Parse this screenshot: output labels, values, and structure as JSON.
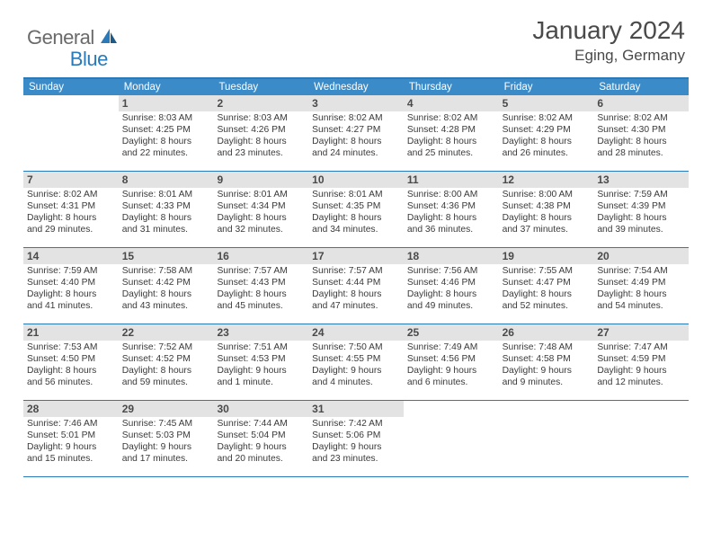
{
  "logo": {
    "part1": "General",
    "part2": "Blue"
  },
  "title": "January 2024",
  "location": "Eging, Germany",
  "colors": {
    "brand_blue": "#2a7ab9",
    "header_blue": "#3b8bc9",
    "grey_text": "#6a6a6a",
    "daynum_bg": "#e3e3e3",
    "body_text": "#3a3a3a"
  },
  "weekdays": [
    "Sunday",
    "Monday",
    "Tuesday",
    "Wednesday",
    "Thursday",
    "Friday",
    "Saturday"
  ],
  "weeks": [
    [
      {
        "n": "",
        "l1": "",
        "l2": "",
        "l3": "",
        "l4": ""
      },
      {
        "n": "1",
        "l1": "Sunrise: 8:03 AM",
        "l2": "Sunset: 4:25 PM",
        "l3": "Daylight: 8 hours",
        "l4": "and 22 minutes."
      },
      {
        "n": "2",
        "l1": "Sunrise: 8:03 AM",
        "l2": "Sunset: 4:26 PM",
        "l3": "Daylight: 8 hours",
        "l4": "and 23 minutes."
      },
      {
        "n": "3",
        "l1": "Sunrise: 8:02 AM",
        "l2": "Sunset: 4:27 PM",
        "l3": "Daylight: 8 hours",
        "l4": "and 24 minutes."
      },
      {
        "n": "4",
        "l1": "Sunrise: 8:02 AM",
        "l2": "Sunset: 4:28 PM",
        "l3": "Daylight: 8 hours",
        "l4": "and 25 minutes."
      },
      {
        "n": "5",
        "l1": "Sunrise: 8:02 AM",
        "l2": "Sunset: 4:29 PM",
        "l3": "Daylight: 8 hours",
        "l4": "and 26 minutes."
      },
      {
        "n": "6",
        "l1": "Sunrise: 8:02 AM",
        "l2": "Sunset: 4:30 PM",
        "l3": "Daylight: 8 hours",
        "l4": "and 28 minutes."
      }
    ],
    [
      {
        "n": "7",
        "l1": "Sunrise: 8:02 AM",
        "l2": "Sunset: 4:31 PM",
        "l3": "Daylight: 8 hours",
        "l4": "and 29 minutes."
      },
      {
        "n": "8",
        "l1": "Sunrise: 8:01 AM",
        "l2": "Sunset: 4:33 PM",
        "l3": "Daylight: 8 hours",
        "l4": "and 31 minutes."
      },
      {
        "n": "9",
        "l1": "Sunrise: 8:01 AM",
        "l2": "Sunset: 4:34 PM",
        "l3": "Daylight: 8 hours",
        "l4": "and 32 minutes."
      },
      {
        "n": "10",
        "l1": "Sunrise: 8:01 AM",
        "l2": "Sunset: 4:35 PM",
        "l3": "Daylight: 8 hours",
        "l4": "and 34 minutes."
      },
      {
        "n": "11",
        "l1": "Sunrise: 8:00 AM",
        "l2": "Sunset: 4:36 PM",
        "l3": "Daylight: 8 hours",
        "l4": "and 36 minutes."
      },
      {
        "n": "12",
        "l1": "Sunrise: 8:00 AM",
        "l2": "Sunset: 4:38 PM",
        "l3": "Daylight: 8 hours",
        "l4": "and 37 minutes."
      },
      {
        "n": "13",
        "l1": "Sunrise: 7:59 AM",
        "l2": "Sunset: 4:39 PM",
        "l3": "Daylight: 8 hours",
        "l4": "and 39 minutes."
      }
    ],
    [
      {
        "n": "14",
        "l1": "Sunrise: 7:59 AM",
        "l2": "Sunset: 4:40 PM",
        "l3": "Daylight: 8 hours",
        "l4": "and 41 minutes."
      },
      {
        "n": "15",
        "l1": "Sunrise: 7:58 AM",
        "l2": "Sunset: 4:42 PM",
        "l3": "Daylight: 8 hours",
        "l4": "and 43 minutes."
      },
      {
        "n": "16",
        "l1": "Sunrise: 7:57 AM",
        "l2": "Sunset: 4:43 PM",
        "l3": "Daylight: 8 hours",
        "l4": "and 45 minutes."
      },
      {
        "n": "17",
        "l1": "Sunrise: 7:57 AM",
        "l2": "Sunset: 4:44 PM",
        "l3": "Daylight: 8 hours",
        "l4": "and 47 minutes."
      },
      {
        "n": "18",
        "l1": "Sunrise: 7:56 AM",
        "l2": "Sunset: 4:46 PM",
        "l3": "Daylight: 8 hours",
        "l4": "and 49 minutes."
      },
      {
        "n": "19",
        "l1": "Sunrise: 7:55 AM",
        "l2": "Sunset: 4:47 PM",
        "l3": "Daylight: 8 hours",
        "l4": "and 52 minutes."
      },
      {
        "n": "20",
        "l1": "Sunrise: 7:54 AM",
        "l2": "Sunset: 4:49 PM",
        "l3": "Daylight: 8 hours",
        "l4": "and 54 minutes."
      }
    ],
    [
      {
        "n": "21",
        "l1": "Sunrise: 7:53 AM",
        "l2": "Sunset: 4:50 PM",
        "l3": "Daylight: 8 hours",
        "l4": "and 56 minutes."
      },
      {
        "n": "22",
        "l1": "Sunrise: 7:52 AM",
        "l2": "Sunset: 4:52 PM",
        "l3": "Daylight: 8 hours",
        "l4": "and 59 minutes."
      },
      {
        "n": "23",
        "l1": "Sunrise: 7:51 AM",
        "l2": "Sunset: 4:53 PM",
        "l3": "Daylight: 9 hours",
        "l4": "and 1 minute."
      },
      {
        "n": "24",
        "l1": "Sunrise: 7:50 AM",
        "l2": "Sunset: 4:55 PM",
        "l3": "Daylight: 9 hours",
        "l4": "and 4 minutes."
      },
      {
        "n": "25",
        "l1": "Sunrise: 7:49 AM",
        "l2": "Sunset: 4:56 PM",
        "l3": "Daylight: 9 hours",
        "l4": "and 6 minutes."
      },
      {
        "n": "26",
        "l1": "Sunrise: 7:48 AM",
        "l2": "Sunset: 4:58 PM",
        "l3": "Daylight: 9 hours",
        "l4": "and 9 minutes."
      },
      {
        "n": "27",
        "l1": "Sunrise: 7:47 AM",
        "l2": "Sunset: 4:59 PM",
        "l3": "Daylight: 9 hours",
        "l4": "and 12 minutes."
      }
    ],
    [
      {
        "n": "28",
        "l1": "Sunrise: 7:46 AM",
        "l2": "Sunset: 5:01 PM",
        "l3": "Daylight: 9 hours",
        "l4": "and 15 minutes."
      },
      {
        "n": "29",
        "l1": "Sunrise: 7:45 AM",
        "l2": "Sunset: 5:03 PM",
        "l3": "Daylight: 9 hours",
        "l4": "and 17 minutes."
      },
      {
        "n": "30",
        "l1": "Sunrise: 7:44 AM",
        "l2": "Sunset: 5:04 PM",
        "l3": "Daylight: 9 hours",
        "l4": "and 20 minutes."
      },
      {
        "n": "31",
        "l1": "Sunrise: 7:42 AM",
        "l2": "Sunset: 5:06 PM",
        "l3": "Daylight: 9 hours",
        "l4": "and 23 minutes."
      },
      {
        "n": "",
        "l1": "",
        "l2": "",
        "l3": "",
        "l4": ""
      },
      {
        "n": "",
        "l1": "",
        "l2": "",
        "l3": "",
        "l4": ""
      },
      {
        "n": "",
        "l1": "",
        "l2": "",
        "l3": "",
        "l4": ""
      }
    ]
  ]
}
